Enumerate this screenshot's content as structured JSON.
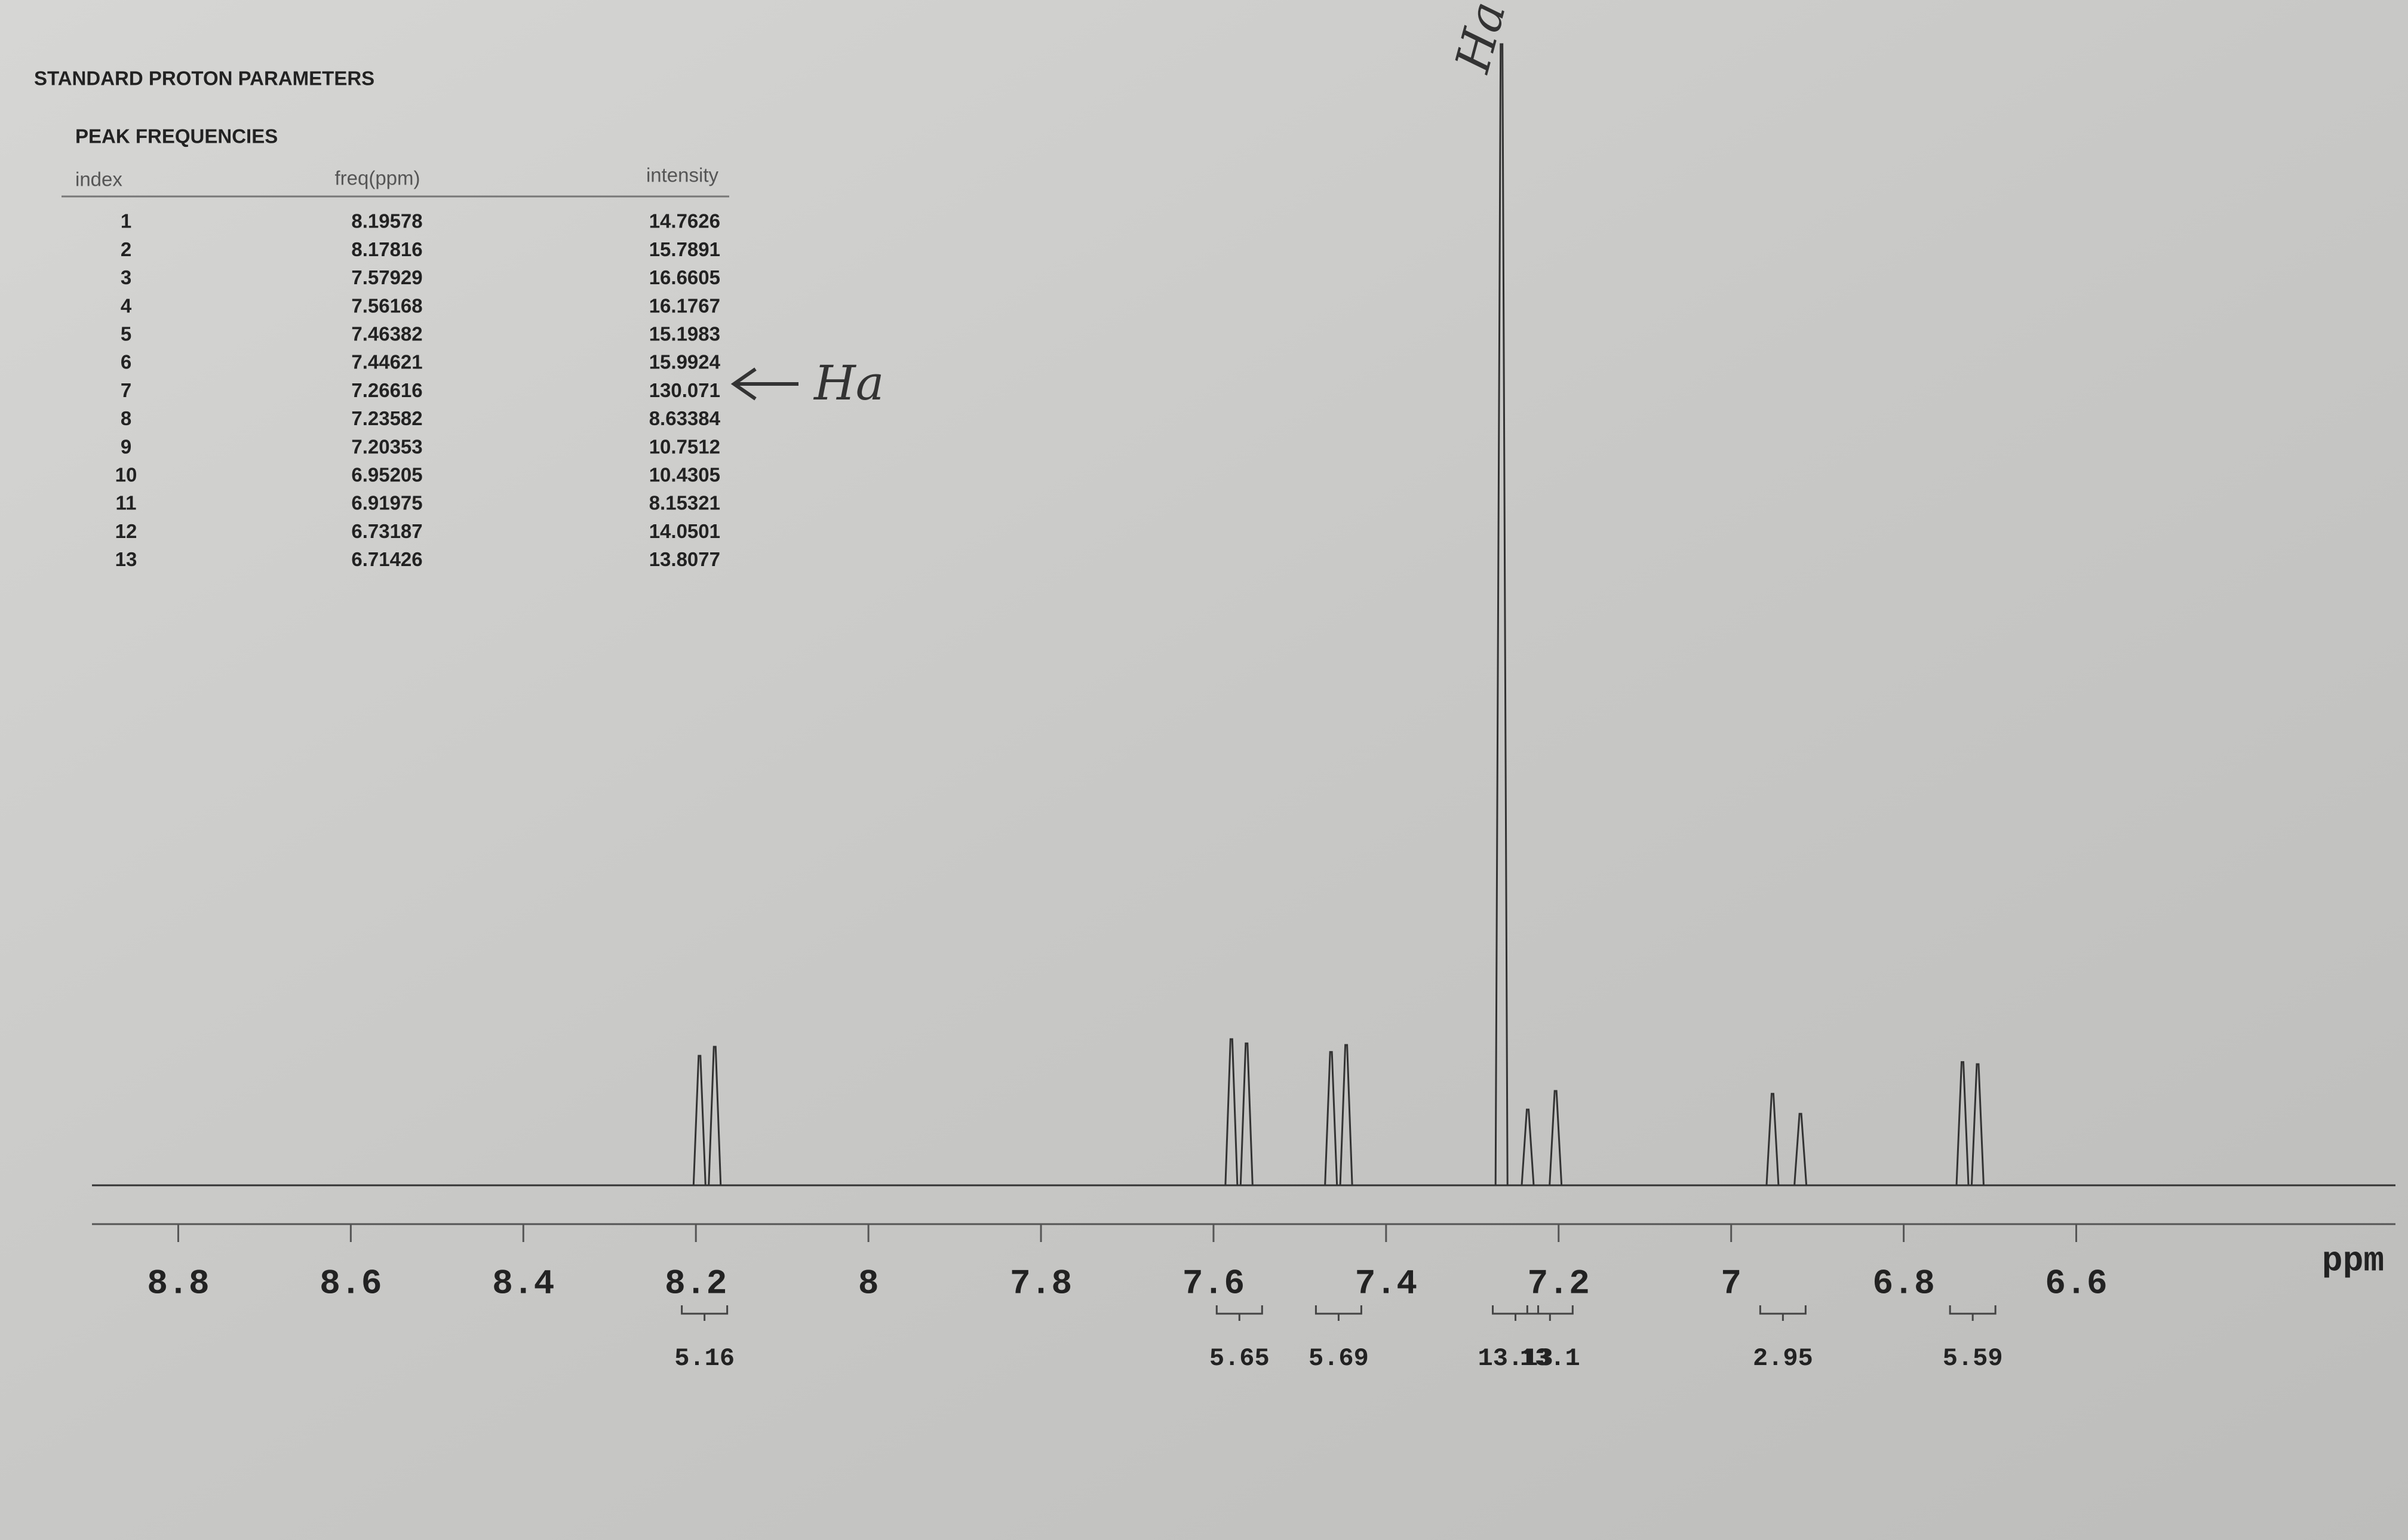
{
  "header": {
    "title": "STANDARD PROTON PARAMETERS",
    "subtitle": "PEAK FREQUENCIES"
  },
  "table": {
    "columns": [
      "index",
      "freq(ppm)",
      "intensity"
    ],
    "rows": [
      [
        1,
        8.19578,
        14.7626
      ],
      [
        2,
        8.17816,
        15.7891
      ],
      [
        3,
        7.57929,
        16.6605
      ],
      [
        4,
        7.56168,
        16.1767
      ],
      [
        5,
        7.46382,
        15.1983
      ],
      [
        6,
        7.44621,
        15.9924
      ],
      [
        7,
        7.26616,
        130.071
      ],
      [
        8,
        7.23582,
        8.63384
      ],
      [
        9,
        7.20353,
        10.7512
      ],
      [
        10,
        6.95205,
        10.4305
      ],
      [
        11,
        6.91975,
        8.15321
      ],
      [
        12,
        6.73187,
        14.0501
      ],
      [
        13,
        6.71426,
        13.8077
      ]
    ]
  },
  "annotations": {
    "row_note": "Ha",
    "peak_note": "Ha"
  },
  "chart_data": {
    "type": "nmr",
    "xlabel": "ppm",
    "xlim": [
      8.9,
      6.23
    ],
    "xticks": [
      8.8,
      8.6,
      8.4,
      8.2,
      8.0,
      7.8,
      7.6,
      7.4,
      7.2,
      7.0,
      6.8,
      6.6
    ],
    "ylim": [
      0,
      133
    ],
    "color": "#333333",
    "integrals": {
      "x": [
        8.19,
        7.57,
        7.455,
        7.25,
        7.21,
        6.94,
        6.72
      ],
      "values": [
        5.16,
        5.65,
        5.69,
        13.13,
        13.1,
        2.95,
        5.59
      ]
    }
  }
}
